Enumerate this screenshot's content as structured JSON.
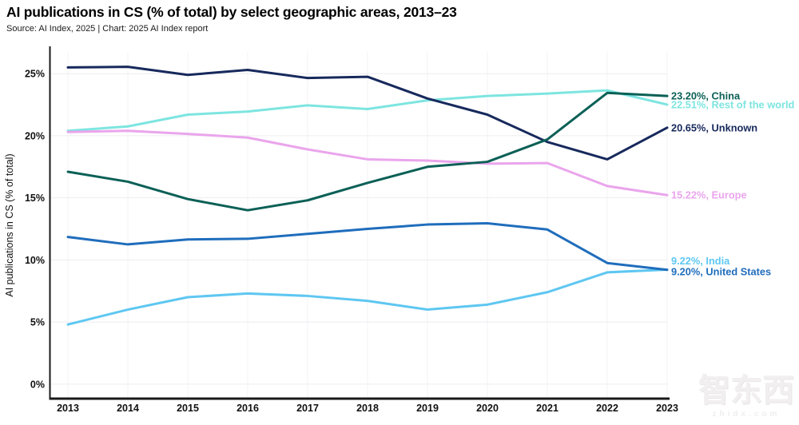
{
  "header": {
    "title": "AI publications in CS (% of total) by select geographic areas, 2013–23",
    "source": "Source: AI Index, 2025 | Chart: 2025 AI Index report"
  },
  "watermark": {
    "logo": "智东西",
    "url": "zhidx.com"
  },
  "chart_data": {
    "type": "line",
    "title": "AI publications in CS (% of total) by select geographic areas, 2013–23",
    "xlabel": "",
    "ylabel": "AI publications in CS (% of total)",
    "x": [
      2013,
      2014,
      2015,
      2016,
      2017,
      2018,
      2019,
      2020,
      2021,
      2022,
      2023
    ],
    "y_ticks": [
      0,
      5,
      10,
      15,
      20,
      25
    ],
    "y_tick_labels": [
      "0%",
      "5%",
      "10%",
      "15%",
      "20%",
      "25%"
    ],
    "ylim": [
      -1.2,
      26.8
    ],
    "grid": true,
    "legend_position": "right-end-labels",
    "series": [
      {
        "name": "China",
        "color": "#0b6056",
        "values": [
          17.1,
          16.3,
          14.9,
          14.0,
          14.8,
          16.2,
          17.5,
          17.9,
          19.7,
          23.45,
          23.2
        ],
        "end_label": "23.20%, China",
        "label_dy": 0
      },
      {
        "name": "Rest of the world",
        "color": "#7de5e0",
        "values": [
          20.4,
          20.75,
          21.7,
          21.95,
          22.45,
          22.15,
          22.85,
          23.2,
          23.4,
          23.65,
          22.51
        ],
        "end_label": "22.51%, Rest of the world",
        "label_dy": 0
      },
      {
        "name": "Unknown",
        "color": "#17295c",
        "values": [
          25.5,
          25.55,
          24.9,
          25.3,
          24.65,
          24.75,
          23.0,
          21.7,
          19.5,
          18.1,
          20.65
        ],
        "end_label": "20.65%, Unknown",
        "label_dy": 0
      },
      {
        "name": "Europe",
        "color": "#eaa5ec",
        "values": [
          20.3,
          20.4,
          20.15,
          19.85,
          18.9,
          18.1,
          18.0,
          17.75,
          17.8,
          15.95,
          15.22
        ],
        "end_label": "15.22%, Europe",
        "label_dy": 0
      },
      {
        "name": "India",
        "color": "#5ec7f1",
        "values": [
          4.8,
          6.0,
          7.0,
          7.3,
          7.1,
          6.7,
          6.0,
          6.4,
          7.4,
          9.0,
          9.22
        ],
        "end_label": "9.22%, India",
        "label_dy": -11
      },
      {
        "name": "United States",
        "color": "#1f6dbc",
        "values": [
          11.85,
          11.25,
          11.65,
          11.7,
          12.1,
          12.5,
          12.85,
          12.95,
          12.45,
          9.75,
          9.2
        ],
        "end_label": "9.20%, United States",
        "label_dy": 2
      }
    ],
    "draw_order": [
      "Rest of the world",
      "Europe",
      "Unknown",
      "India",
      "United States",
      "China"
    ]
  }
}
